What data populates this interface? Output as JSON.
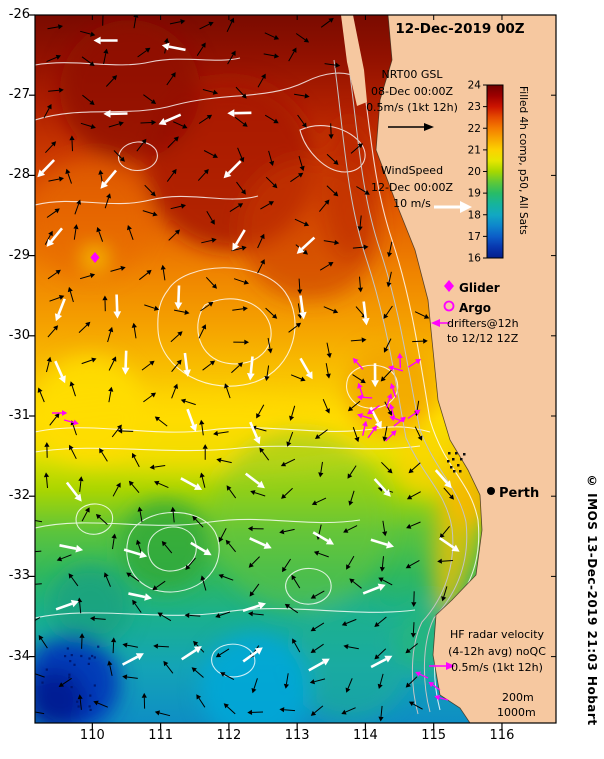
{
  "title": "12-Dec-2019 00Z",
  "gsl": {
    "l1": "NRT00 GSL",
    "l2": "08-Dec 00:00Z",
    "l3": "0.5m/s (1kt 12h)"
  },
  "wind": {
    "l1": "WindSpeed",
    "l2": "12-Dec 00:00Z",
    "l3": "10 m/s"
  },
  "colorbar": {
    "label": "Filled 4h comp, p50, All Sats",
    "min": 16,
    "max": 24,
    "ticks": [
      24,
      23,
      22,
      21,
      20,
      19,
      18,
      17,
      16
    ],
    "stops": [
      [
        24,
        "#700000"
      ],
      [
        23.5,
        "#9e0000"
      ],
      [
        23,
        "#cc1400"
      ],
      [
        22.5,
        "#e64c00"
      ],
      [
        22,
        "#f47c00"
      ],
      [
        21.5,
        "#f8a800"
      ],
      [
        21,
        "#fcd200"
      ],
      [
        20.5,
        "#e6e600"
      ],
      [
        20,
        "#a6d800"
      ],
      [
        19.5,
        "#5ec838"
      ],
      [
        19,
        "#28bc66"
      ],
      [
        18.5,
        "#16b49c"
      ],
      [
        18,
        "#12a8c2"
      ],
      [
        17.5,
        "#0e86cc"
      ],
      [
        17,
        "#0c5ec8"
      ],
      [
        16.5,
        "#0836ae"
      ],
      [
        16,
        "#041e8c"
      ]
    ]
  },
  "markers": {
    "glider": "Glider",
    "argo": "Argo",
    "drifters1": "drifters@12h",
    "drifters2": "to 12/12 12Z"
  },
  "city": {
    "name": "Perth"
  },
  "hf": {
    "l1": "HF radar velocity",
    "l2": "(4-12h avg) noQC",
    "l3": "0.5m/s (1kt 12h)"
  },
  "bathy": {
    "c200": "200m",
    "c1000": "1000m"
  },
  "credit": "© IMOS 13-Dec-2019 21:03 Hobart",
  "axes": {
    "x_ticks": [
      "110",
      "111",
      "112",
      "113",
      "114",
      "115",
      "116"
    ],
    "y_ticks": [
      "-26",
      "-27",
      "-28",
      "-29",
      "-30",
      "-31",
      "-32",
      "-33",
      "-34"
    ]
  },
  "glyphs": {
    "glider_marker": "magenta-filled-diamond",
    "argo_marker": "magenta-open-circle",
    "drifter_marker": "magenta-arrow",
    "gsl_marker": "black-arrow",
    "wind_marker": "white-arrow",
    "city_marker": "black-filled-circle"
  },
  "colors": {
    "land": "#f6c8a0",
    "magenta": "#ff00ff",
    "contour": "#ffffff",
    "bathy_contour": "#c4c4c4",
    "vector_black": "#000000",
    "vector_white": "#ffffff",
    "frame": "#000000",
    "background": "#ffffff"
  }
}
